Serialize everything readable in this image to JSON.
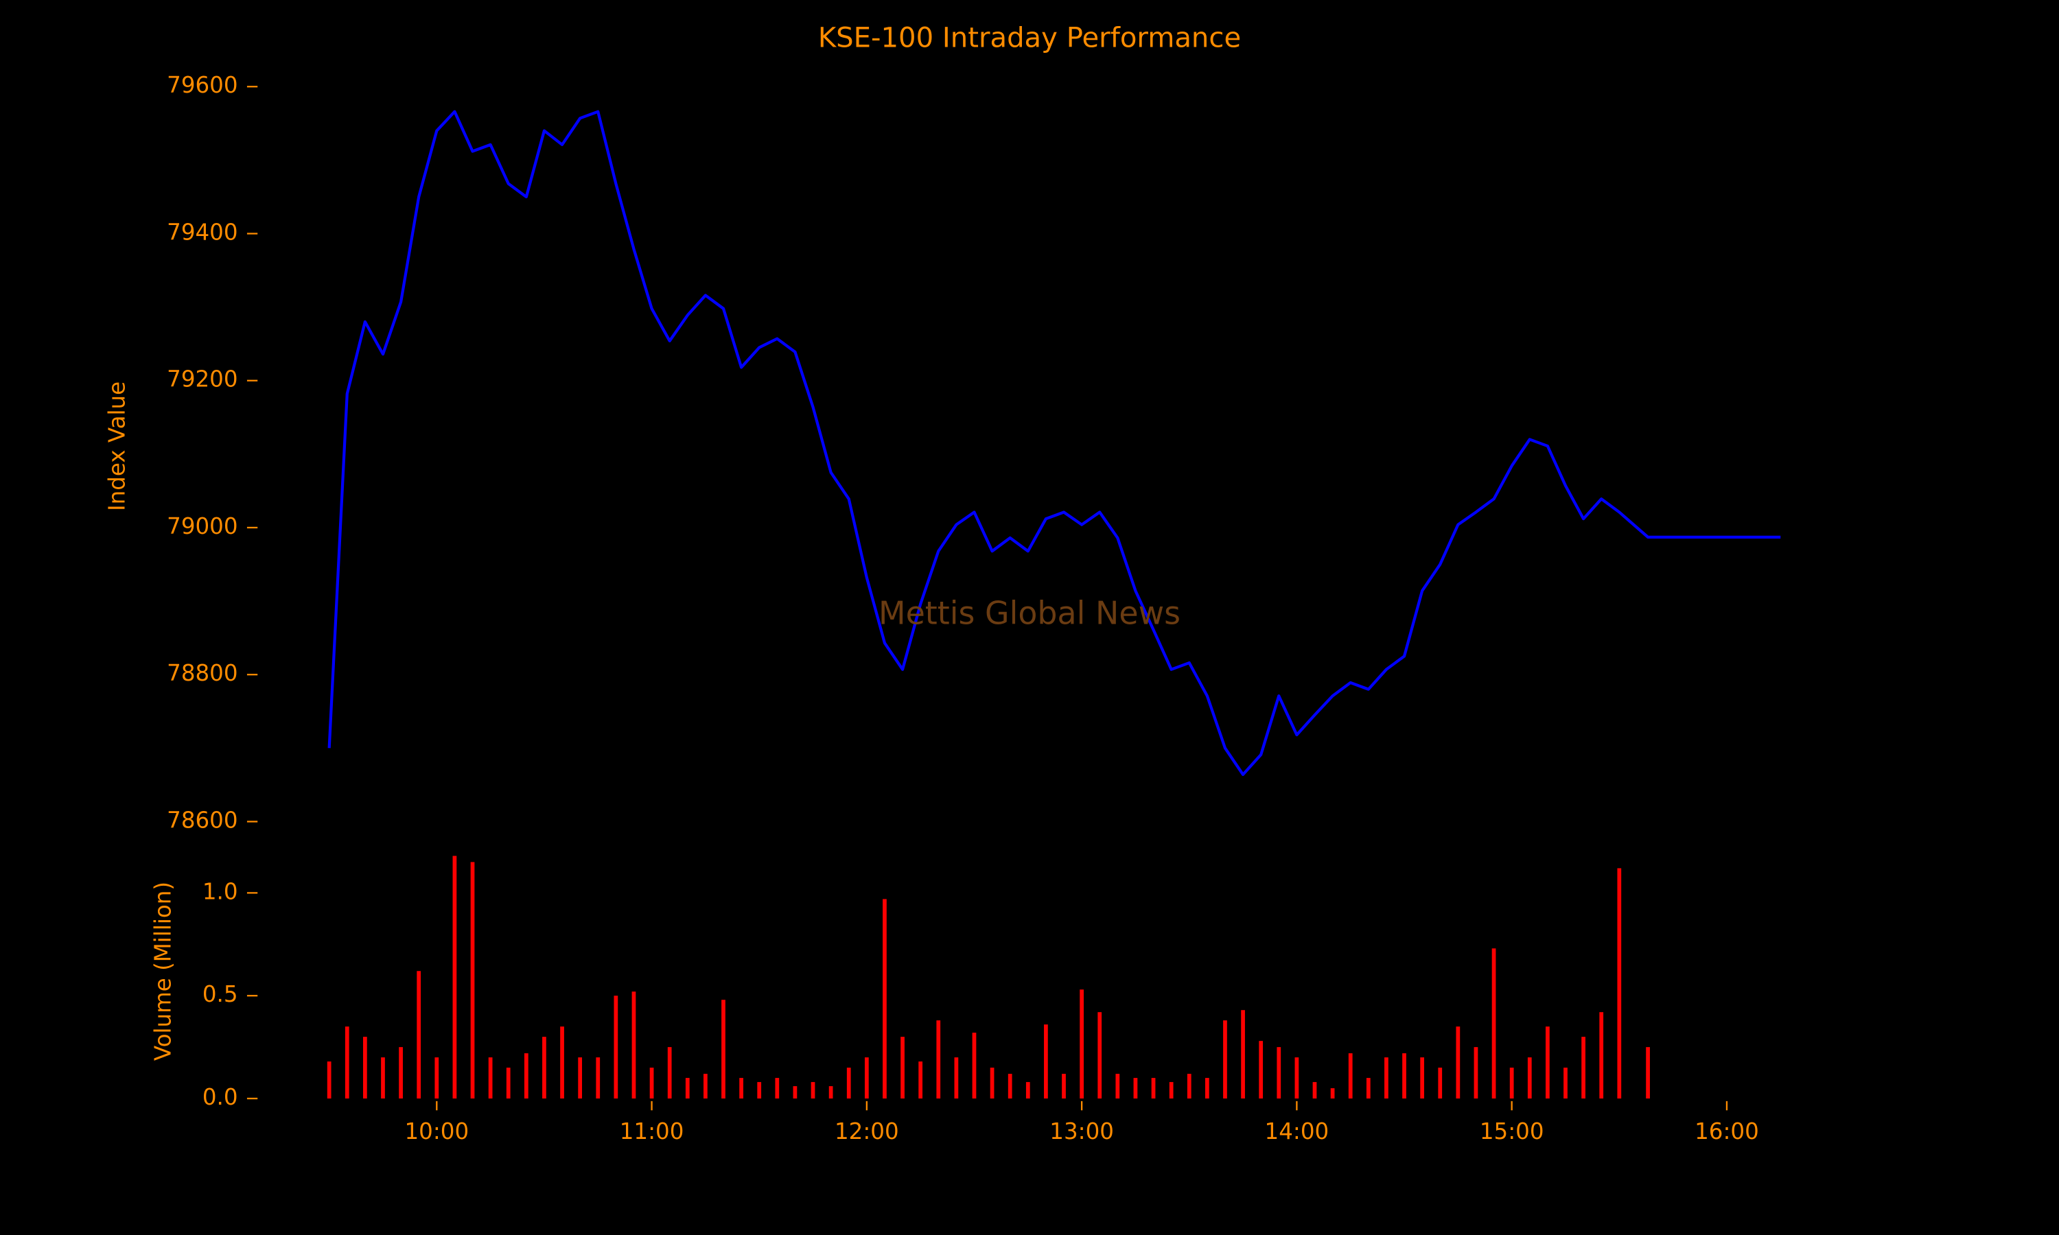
{
  "chart_data": [
    {
      "type": "line",
      "title": "KSE-100 Intraday Performance",
      "ylabel": "Index Value",
      "annotation": "Mettis Global News",
      "xlim": [
        "09:10",
        "16:30"
      ],
      "ylim": [
        78600,
        79600
      ],
      "yticks": [
        78600,
        78800,
        79000,
        79200,
        79400,
        79600
      ],
      "grid": false,
      "x": [
        "09:30",
        "09:35",
        "09:40",
        "09:45",
        "09:50",
        "09:55",
        "10:00",
        "10:05",
        "10:10",
        "10:15",
        "10:20",
        "10:25",
        "10:30",
        "10:35",
        "10:40",
        "10:45",
        "10:50",
        "10:55",
        "11:00",
        "11:05",
        "11:10",
        "11:15",
        "11:20",
        "11:25",
        "11:30",
        "11:35",
        "11:40",
        "11:45",
        "11:50",
        "11:55",
        "12:00",
        "12:05",
        "12:10",
        "12:15",
        "12:20",
        "12:25",
        "12:30",
        "12:35",
        "12:40",
        "12:45",
        "12:50",
        "12:55",
        "13:00",
        "13:05",
        "13:10",
        "13:15",
        "13:20",
        "13:25",
        "13:30",
        "13:35",
        "13:40",
        "13:45",
        "13:50",
        "13:55",
        "14:00",
        "14:05",
        "14:10",
        "14:15",
        "14:20",
        "14:25",
        "14:30",
        "14:35",
        "14:40",
        "14:45",
        "14:50",
        "14:55",
        "15:00",
        "15:05",
        "15:10",
        "15:15",
        "15:20",
        "15:25",
        "15:30",
        "15:38",
        "16:15"
      ],
      "series": [
        {
          "name": "KSE-100",
          "color": "#0000ff",
          "values": [
            78700,
            79182,
            79280,
            79236,
            79307,
            79450,
            79540,
            79566,
            79512,
            79521,
            79468,
            79450,
            79540,
            79521,
            79557,
            79566,
            79468,
            79379,
            79298,
            79254,
            79289,
            79316,
            79298,
            79218,
            79245,
            79257,
            79239,
            79164,
            79075,
            79039,
            78932,
            78843,
            78807,
            78896,
            78968,
            79004,
            79021,
            78968,
            78986,
            78968,
            79012,
            79021,
            79004,
            79021,
            78986,
            78914,
            78861,
            78807,
            78816,
            78771,
            78700,
            78664,
            78691,
            78771,
            78718,
            78745,
            78771,
            78789,
            78780,
            78807,
            78825,
            78914,
            78950,
            79004,
            79021,
            79039,
            79084,
            79120,
            79111,
            79057,
            79012,
            79039,
            79021,
            78987,
            78987
          ]
        }
      ]
    },
    {
      "type": "bar",
      "ylabel": "Volume (Million)",
      "xlim": [
        "09:10",
        "16:30"
      ],
      "ylim": [
        0,
        1.2
      ],
      "xticks": [
        "10:00",
        "11:00",
        "12:00",
        "13:00",
        "14:00",
        "15:00",
        "16:00"
      ],
      "yticks": [
        {
          "value": 0,
          "label": "0.0"
        },
        {
          "value": 0.5,
          "label": "0.5"
        },
        {
          "value": 1,
          "label": "1.0"
        }
      ],
      "x": [
        "09:30",
        "09:35",
        "09:40",
        "09:45",
        "09:50",
        "09:55",
        "10:00",
        "10:05",
        "10:10",
        "10:15",
        "10:20",
        "10:25",
        "10:30",
        "10:35",
        "10:40",
        "10:45",
        "10:50",
        "10:55",
        "11:00",
        "11:05",
        "11:10",
        "11:15",
        "11:20",
        "11:25",
        "11:30",
        "11:35",
        "11:40",
        "11:45",
        "11:50",
        "11:55",
        "12:00",
        "12:05",
        "12:10",
        "12:15",
        "12:20",
        "12:25",
        "12:30",
        "12:35",
        "12:40",
        "12:45",
        "12:50",
        "12:55",
        "13:00",
        "13:05",
        "13:10",
        "13:15",
        "13:20",
        "13:25",
        "13:30",
        "13:35",
        "13:40",
        "13:45",
        "13:50",
        "13:55",
        "14:00",
        "14:05",
        "14:10",
        "14:15",
        "14:20",
        "14:25",
        "14:30",
        "14:35",
        "14:40",
        "14:45",
        "14:50",
        "14:55",
        "15:00",
        "15:05",
        "15:10",
        "15:15",
        "15:20",
        "15:25",
        "15:30",
        "15:38"
      ],
      "color": "#ff0000",
      "values": [
        0.18,
        0.35,
        0.3,
        0.2,
        0.25,
        0.62,
        0.2,
        1.18,
        1.15,
        0.2,
        0.15,
        0.22,
        0.3,
        0.35,
        0.2,
        0.2,
        0.5,
        0.52,
        0.15,
        0.25,
        0.1,
        0.12,
        0.48,
        0.1,
        0.08,
        0.1,
        0.06,
        0.08,
        0.06,
        0.15,
        0.2,
        0.97,
        0.3,
        0.18,
        0.38,
        0.2,
        0.32,
        0.15,
        0.12,
        0.08,
        0.36,
        0.12,
        0.53,
        0.42,
        0.12,
        0.1,
        0.1,
        0.08,
        0.12,
        0.1,
        0.38,
        0.43,
        0.28,
        0.25,
        0.2,
        0.08,
        0.05,
        0.22,
        0.1,
        0.2,
        0.22,
        0.2,
        0.15,
        0.35,
        0.25,
        0.73,
        0.15,
        0.2,
        0.35,
        0.15,
        0.3,
        0.42,
        1.12,
        0.25
      ]
    }
  ]
}
